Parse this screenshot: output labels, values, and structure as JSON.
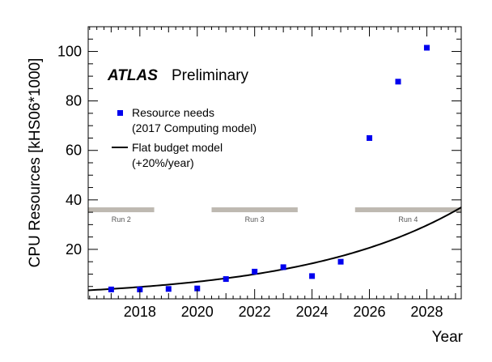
{
  "chart_data": {
    "type": "scatter",
    "title": "",
    "xlabel": "Year",
    "ylabel": "CPU Resources [kHS06*1000]",
    "xlim": [
      2016.2,
      2029.2
    ],
    "ylim": [
      0,
      110
    ],
    "x_ticks": [
      2018,
      2020,
      2022,
      2024,
      2026,
      2028
    ],
    "y_ticks": [
      20,
      40,
      60,
      80,
      100
    ],
    "grid": false,
    "legend_position": "upper-left",
    "annotations": {
      "experiment": "ATLAS",
      "status": "Preliminary"
    },
    "series": [
      {
        "name": "Resource needs",
        "name_line2": "(2017 Computing model)",
        "kind": "markers",
        "marker": "square",
        "color": "#0000ee",
        "x": [
          2017,
          2018,
          2019,
          2020,
          2021,
          2022,
          2023,
          2024,
          2025,
          2026,
          2027,
          2028
        ],
        "y": [
          3.8,
          3.8,
          4.0,
          4.2,
          8.0,
          11.0,
          12.8,
          9.2,
          15.0,
          65.0,
          87.8,
          101.5
        ]
      },
      {
        "name": "Flat budget model",
        "name_line2": "(+20%/year)",
        "kind": "line",
        "color": "#000000",
        "model": {
          "x0": 2017,
          "y0": 4.0,
          "growth_per_year": 0.2
        },
        "x_range": [
          2016.2,
          2029.2
        ]
      }
    ],
    "runs": [
      {
        "label": "Run 2",
        "start": 2016.2,
        "end": 2018.5
      },
      {
        "label": "Run 3",
        "start": 2020.5,
        "end": 2023.5
      },
      {
        "label": "Run 4",
        "start": 2025.5,
        "end": 2029.2
      }
    ],
    "run_band": {
      "y": 36,
      "color": "#beb9b1"
    }
  }
}
